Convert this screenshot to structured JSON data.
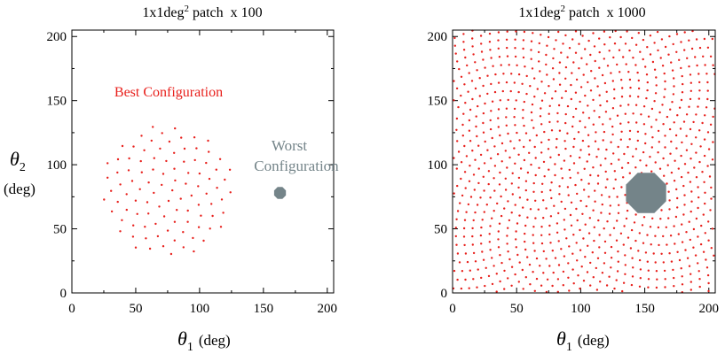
{
  "colors": {
    "points": "#e8201c",
    "worst": "#748489",
    "best_label": "#e8201c",
    "worst_label": "#748489",
    "axes": "#000000"
  },
  "chart_data": [
    {
      "type": "scatter",
      "title": {
        "text": "1x1deg",
        "sup": "2",
        "rest": " patch  x 100"
      },
      "xlabel": {
        "symbol": "θ",
        "sub": "1",
        "unit": "(deg)"
      },
      "ylabel": {
        "symbol": "θ",
        "sub": "2",
        "unit": "(deg)"
      },
      "xlim": [
        0,
        205
      ],
      "ylim": [
        0,
        205
      ],
      "xticks": [
        "0",
        "50",
        "100",
        "150",
        "200"
      ],
      "yticks": [
        "0",
        "50",
        "100",
        "150",
        "200"
      ],
      "series": [
        {
          "name": "Best Configuration",
          "label": "Best Configuration",
          "n_points": 100,
          "layout": "disk",
          "center": [
            75,
            80
          ],
          "radius": 52
        },
        {
          "name": "Worst Configuration",
          "label_line1": "Worst",
          "label_line2": "Configuration",
          "n_points": 100,
          "layout": "cluster",
          "center": [
            163,
            78
          ],
          "radius": 5
        }
      ]
    },
    {
      "type": "scatter",
      "title": {
        "text": "1x1deg",
        "sup": "2",
        "rest": " patch  x 1000"
      },
      "xlabel": {
        "symbol": "θ",
        "sub": "1",
        "unit": "(deg)"
      },
      "ylabel": null,
      "xlim": [
        0,
        205
      ],
      "ylim": [
        0,
        205
      ],
      "xticks": [
        "0",
        "50",
        "100",
        "150",
        "200"
      ],
      "yticks": [
        "0",
        "50",
        "100",
        "150",
        "200"
      ],
      "series": [
        {
          "name": "Best Configuration",
          "n_points": 1000,
          "layout": "square-fill",
          "range": [
            0,
            205
          ]
        },
        {
          "name": "Worst Configuration",
          "n_points": 1000,
          "layout": "cluster",
          "center": [
            151,
            78
          ],
          "radius": 17
        }
      ]
    }
  ]
}
